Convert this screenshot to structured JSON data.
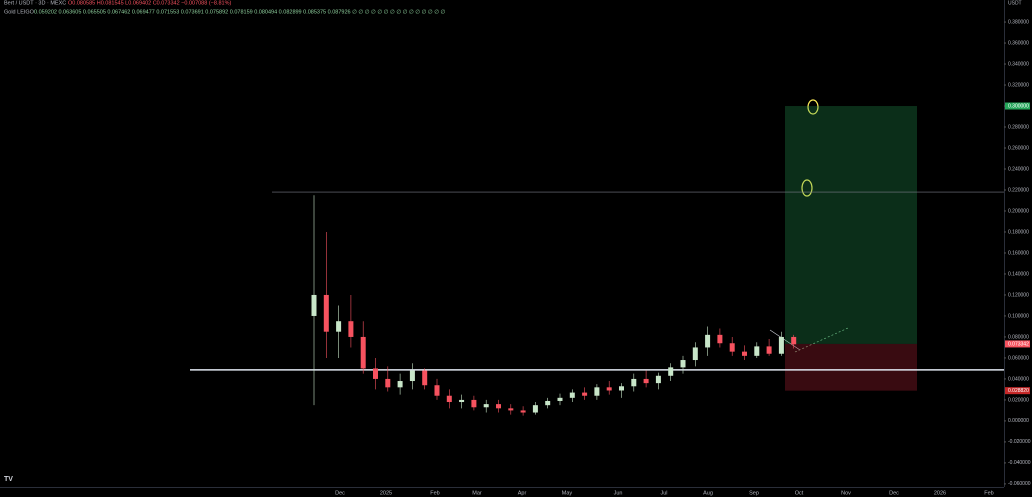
{
  "header": {
    "symbol": "Bert / USDT · 3D · MEXC",
    "ohlc": "O0.080585 H0.081545 L0.069402 C0.073342 −0.007088 (−8.81%)",
    "indicator": "Gold LEIGO",
    "indicator_values": "0.059202 0.063605 0.065505 0.067462 0.069477 0.071553 0.073691 0.075892 0.078159 0.080494 0.082899 0.085375 0.087926 ∅ ∅ ∅ ∅ ∅ ∅ ∅ ∅ ∅ ∅ ∅ ∅ ∅ ∅ ∅"
  },
  "currency": "USDT",
  "chart_data": {
    "type": "candlestick",
    "up_color": "#c8e6c9",
    "down_color": "#f7525f",
    "candles": [
      {
        "o": 0.1,
        "h": 0.215,
        "l": 0.015,
        "c": 0.12
      },
      {
        "o": 0.12,
        "h": 0.18,
        "l": 0.06,
        "c": 0.085
      },
      {
        "o": 0.085,
        "h": 0.11,
        "l": 0.06,
        "c": 0.095
      },
      {
        "o": 0.095,
        "h": 0.12,
        "l": 0.07,
        "c": 0.08
      },
      {
        "o": 0.08,
        "h": 0.095,
        "l": 0.045,
        "c": 0.05
      },
      {
        "o": 0.05,
        "h": 0.06,
        "l": 0.03,
        "c": 0.04
      },
      {
        "o": 0.04,
        "h": 0.052,
        "l": 0.028,
        "c": 0.032
      },
      {
        "o": 0.032,
        "h": 0.045,
        "l": 0.025,
        "c": 0.038
      },
      {
        "o": 0.038,
        "h": 0.055,
        "l": 0.03,
        "c": 0.048
      },
      {
        "o": 0.048,
        "h": 0.05,
        "l": 0.03,
        "c": 0.034
      },
      {
        "o": 0.034,
        "h": 0.04,
        "l": 0.02,
        "c": 0.024
      },
      {
        "o": 0.024,
        "h": 0.03,
        "l": 0.012,
        "c": 0.018
      },
      {
        "o": 0.018,
        "h": 0.025,
        "l": 0.012,
        "c": 0.02
      },
      {
        "o": 0.02,
        "h": 0.024,
        "l": 0.01,
        "c": 0.013
      },
      {
        "o": 0.013,
        "h": 0.02,
        "l": 0.008,
        "c": 0.016
      },
      {
        "o": 0.016,
        "h": 0.02,
        "l": 0.008,
        "c": 0.012
      },
      {
        "o": 0.012,
        "h": 0.016,
        "l": 0.006,
        "c": 0.01
      },
      {
        "o": 0.01,
        "h": 0.014,
        "l": 0.005,
        "c": 0.008
      },
      {
        "o": 0.008,
        "h": 0.018,
        "l": 0.006,
        "c": 0.015
      },
      {
        "o": 0.015,
        "h": 0.022,
        "l": 0.012,
        "c": 0.019
      },
      {
        "o": 0.019,
        "h": 0.026,
        "l": 0.015,
        "c": 0.022
      },
      {
        "o": 0.022,
        "h": 0.03,
        "l": 0.018,
        "c": 0.027
      },
      {
        "o": 0.027,
        "h": 0.032,
        "l": 0.02,
        "c": 0.024
      },
      {
        "o": 0.024,
        "h": 0.035,
        "l": 0.02,
        "c": 0.032
      },
      {
        "o": 0.032,
        "h": 0.038,
        "l": 0.025,
        "c": 0.029
      },
      {
        "o": 0.029,
        "h": 0.036,
        "l": 0.022,
        "c": 0.033
      },
      {
        "o": 0.033,
        "h": 0.045,
        "l": 0.028,
        "c": 0.04
      },
      {
        "o": 0.04,
        "h": 0.048,
        "l": 0.032,
        "c": 0.036
      },
      {
        "o": 0.036,
        "h": 0.046,
        "l": 0.03,
        "c": 0.043
      },
      {
        "o": 0.043,
        "h": 0.055,
        "l": 0.038,
        "c": 0.051
      },
      {
        "o": 0.051,
        "h": 0.062,
        "l": 0.045,
        "c": 0.058
      },
      {
        "o": 0.058,
        "h": 0.075,
        "l": 0.052,
        "c": 0.07
      },
      {
        "o": 0.07,
        "h": 0.09,
        "l": 0.062,
        "c": 0.082
      },
      {
        "o": 0.082,
        "h": 0.088,
        "l": 0.07,
        "c": 0.074
      },
      {
        "o": 0.074,
        "h": 0.08,
        "l": 0.062,
        "c": 0.066
      },
      {
        "o": 0.066,
        "h": 0.072,
        "l": 0.058,
        "c": 0.062
      },
      {
        "o": 0.062,
        "h": 0.075,
        "l": 0.06,
        "c": 0.071
      },
      {
        "o": 0.071,
        "h": 0.078,
        "l": 0.062,
        "c": 0.064
      },
      {
        "o": 0.064,
        "h": 0.085,
        "l": 0.062,
        "c": 0.08
      },
      {
        "o": 0.08,
        "h": 0.082,
        "l": 0.069,
        "c": 0.073
      }
    ],
    "ylim": [
      -0.062,
      0.401
    ],
    "yticks": [
      {
        "value": 0.38,
        "label": "0.380000"
      },
      {
        "value": 0.36,
        "label": "0.360000"
      },
      {
        "value": 0.34,
        "label": "0.340000"
      },
      {
        "value": 0.32,
        "label": "0.320000"
      },
      {
        "value": 0.3,
        "label": "0.300000"
      },
      {
        "value": 0.28,
        "label": "0.280000"
      },
      {
        "value": 0.26,
        "label": "0.260000"
      },
      {
        "value": 0.24,
        "label": "0.240000"
      },
      {
        "value": 0.22,
        "label": "0.220000"
      },
      {
        "value": 0.2,
        "label": "0.200000"
      },
      {
        "value": 0.18,
        "label": "0.180000"
      },
      {
        "value": 0.16,
        "label": "0.160000"
      },
      {
        "value": 0.14,
        "label": "0.140000"
      },
      {
        "value": 0.12,
        "label": "0.120000"
      },
      {
        "value": 0.1,
        "label": "0.100000"
      },
      {
        "value": 0.08,
        "label": "0.080000"
      },
      {
        "value": 0.06,
        "label": "0.060000"
      },
      {
        "value": 0.04,
        "label": "0.040000"
      },
      {
        "value": 0.02,
        "label": "0.020000"
      },
      {
        "value": 0,
        "label": "0.000000"
      },
      {
        "value": -0.02,
        "label": "-0.020000"
      },
      {
        "value": -0.04,
        "label": "-0.040000"
      },
      {
        "value": -0.06,
        "label": "-0.060000"
      }
    ],
    "time_labels": [
      "Dec",
      "2025",
      "Feb",
      "Mar",
      "Apr",
      "May",
      "Jun",
      "Jul",
      "Aug",
      "Sep",
      "Oct",
      "Nov",
      "Dec",
      "2026",
      "Feb"
    ],
    "horizontal_lines": [
      0.0486,
      0.218
    ],
    "position": {
      "target": 0.3,
      "target_label": "0.300000",
      "entry": 0.073342,
      "entry_label": "0.073342",
      "stop": 0.02882,
      "stop_label": "0.028820"
    }
  }
}
